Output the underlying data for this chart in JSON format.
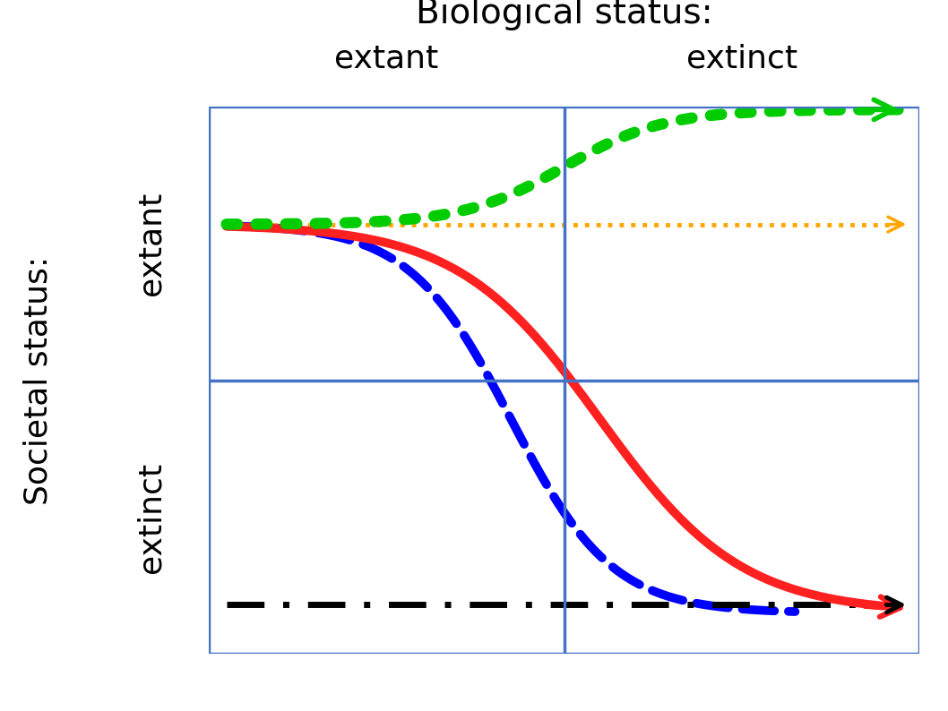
{
  "title_biological": "Biological status:",
  "label_bio_extant": "extant",
  "label_bio_extinct": "extinct",
  "label_soc_extant": "extant",
  "label_soc_extinct": "extinct",
  "ylabel": "Societal status:",
  "background_color": "#ffffff",
  "box_color": "#4472c4",
  "title_fontsize": 28,
  "label_fontsize": 26,
  "axis_label_fontsize": 26,
  "orange_color": "#ffa500",
  "green_color": "#00cc00",
  "red_color": "#ff2020",
  "blue_color": "#0000ff",
  "black_color": "#000000"
}
